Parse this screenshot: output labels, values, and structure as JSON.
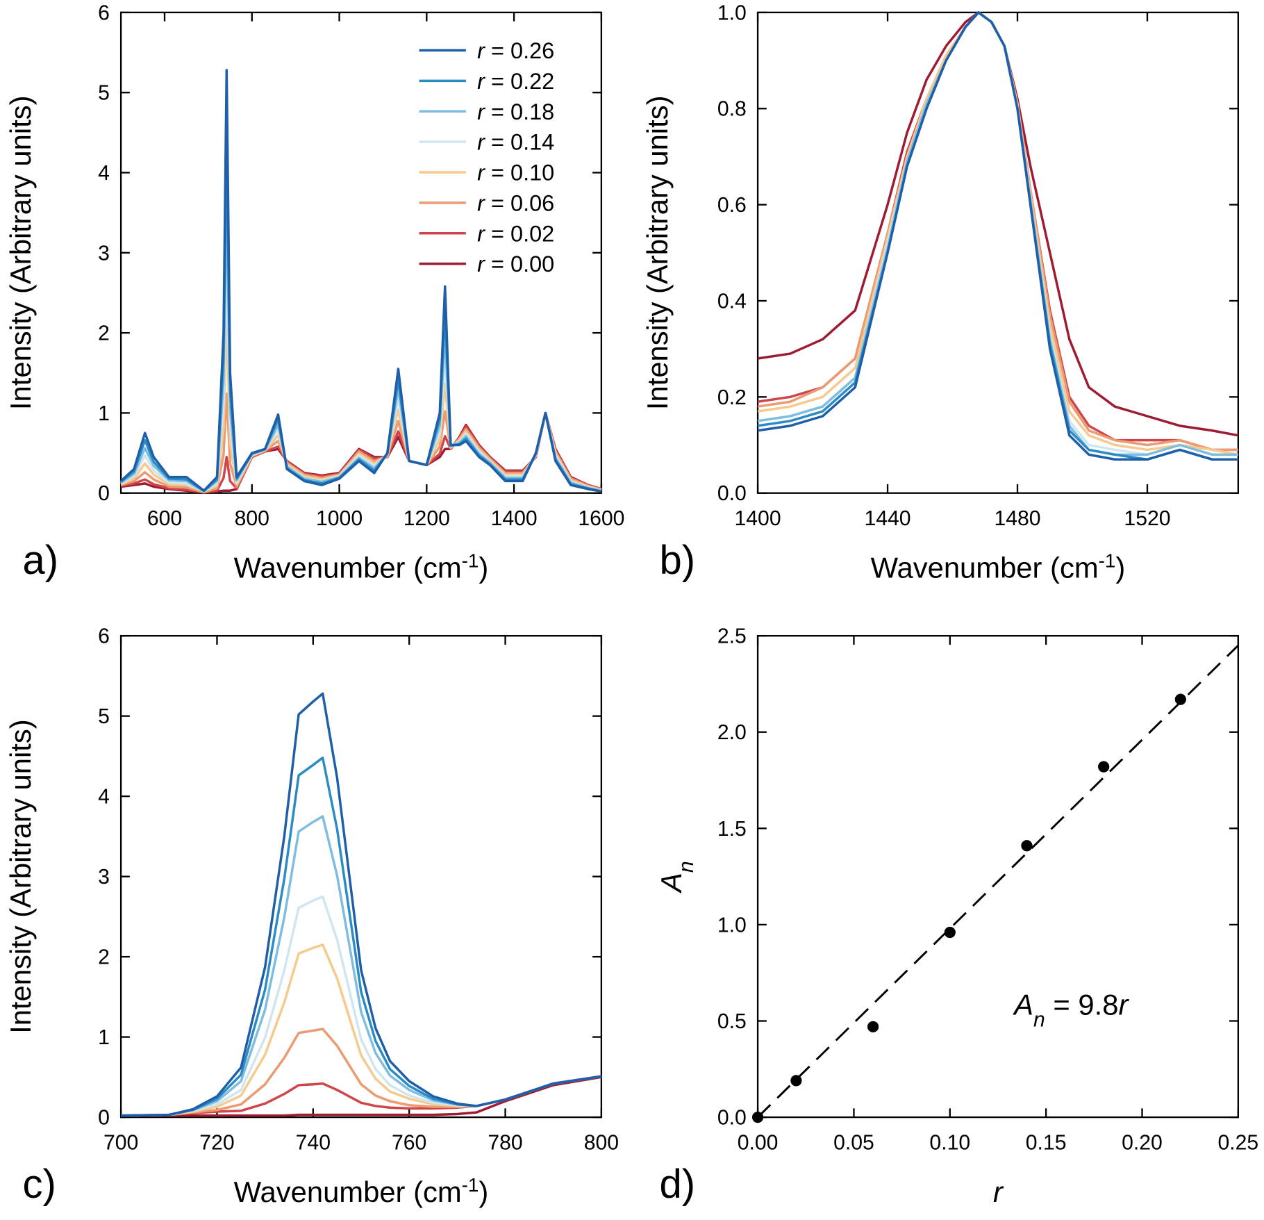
{
  "chart_data": [
    {
      "type": "line",
      "panel_label": "a)",
      "xlabel": [
        "Wavenumber (cm",
        "-1",
        ")"
      ],
      "ylabel": "Intensity (Arbitrary units)",
      "xlim": [
        500,
        1600
      ],
      "ylim": [
        0,
        6
      ],
      "xticks": [
        600,
        800,
        1000,
        1200,
        1400,
        1600
      ],
      "yticks": [
        0,
        1,
        2,
        3,
        4,
        5,
        6
      ],
      "legend": "upper right",
      "x": [
        500,
        530,
        555,
        575,
        610,
        650,
        690,
        720,
        735,
        742,
        750,
        765,
        800,
        830,
        860,
        880,
        920,
        960,
        1000,
        1045,
        1080,
        1110,
        1135,
        1160,
        1200,
        1230,
        1242,
        1255,
        1275,
        1290,
        1320,
        1345,
        1380,
        1420,
        1450,
        1472,
        1495,
        1530,
        1570,
        1600
      ],
      "series": [
        {
          "name": "r = 0.26",
          "color": "#1f5ea8",
          "values": [
            0.15,
            0.3,
            0.75,
            0.45,
            0.2,
            0.2,
            0.03,
            0.2,
            2.0,
            5.28,
            1.5,
            0.2,
            0.5,
            0.55,
            0.98,
            0.3,
            0.15,
            0.1,
            0.18,
            0.4,
            0.25,
            0.5,
            1.55,
            0.4,
            0.35,
            1.0,
            2.58,
            0.6,
            0.6,
            0.65,
            0.45,
            0.35,
            0.15,
            0.15,
            0.5,
            1.0,
            0.4,
            0.1,
            0.05,
            0.02
          ]
        },
        {
          "name": "r = 0.22",
          "color": "#2b8cc4",
          "values": [
            0.14,
            0.27,
            0.66,
            0.39,
            0.18,
            0.17,
            0.03,
            0.17,
            1.7,
            4.49,
            1.28,
            0.18,
            0.49,
            0.55,
            0.92,
            0.31,
            0.16,
            0.12,
            0.19,
            0.42,
            0.28,
            0.49,
            1.42,
            0.4,
            0.35,
            0.92,
            2.28,
            0.59,
            0.61,
            0.68,
            0.47,
            0.36,
            0.17,
            0.17,
            0.49,
            1.0,
            0.42,
            0.11,
            0.06,
            0.02
          ]
        },
        {
          "name": "r = 0.18",
          "color": "#7fbde0",
          "values": [
            0.13,
            0.24,
            0.56,
            0.34,
            0.16,
            0.15,
            0.02,
            0.15,
            1.41,
            3.71,
            1.06,
            0.16,
            0.49,
            0.54,
            0.85,
            0.33,
            0.18,
            0.14,
            0.2,
            0.44,
            0.31,
            0.49,
            1.3,
            0.4,
            0.35,
            0.84,
            1.97,
            0.59,
            0.63,
            0.71,
            0.49,
            0.38,
            0.19,
            0.19,
            0.49,
            1.0,
            0.44,
            0.13,
            0.06,
            0.03
          ]
        },
        {
          "name": "r = 0.14",
          "color": "#cfe5ef",
          "values": [
            0.12,
            0.21,
            0.47,
            0.28,
            0.13,
            0.12,
            0.02,
            0.12,
            1.11,
            2.92,
            0.84,
            0.13,
            0.48,
            0.54,
            0.79,
            0.34,
            0.19,
            0.15,
            0.21,
            0.47,
            0.34,
            0.48,
            1.17,
            0.4,
            0.35,
            0.75,
            1.67,
            0.58,
            0.64,
            0.74,
            0.52,
            0.39,
            0.21,
            0.21,
            0.48,
            1.0,
            0.47,
            0.14,
            0.07,
            0.03
          ]
        },
        {
          "name": "r = 0.10",
          "color": "#f6c98d",
          "values": [
            0.11,
            0.18,
            0.37,
            0.23,
            0.11,
            0.1,
            0.02,
            0.09,
            0.82,
            2.13,
            0.62,
            0.11,
            0.47,
            0.53,
            0.72,
            0.36,
            0.21,
            0.17,
            0.22,
            0.49,
            0.37,
            0.47,
            1.04,
            0.4,
            0.35,
            0.67,
            1.36,
            0.57,
            0.66,
            0.77,
            0.54,
            0.41,
            0.23,
            0.23,
            0.47,
            1.0,
            0.49,
            0.16,
            0.08,
            0.04
          ]
        },
        {
          "name": "r = 0.06",
          "color": "#eb9a72",
          "values": [
            0.1,
            0.15,
            0.26,
            0.17,
            0.08,
            0.07,
            0.01,
            0.06,
            0.48,
            1.24,
            0.37,
            0.08,
            0.46,
            0.53,
            0.65,
            0.38,
            0.23,
            0.19,
            0.23,
            0.52,
            0.4,
            0.46,
            0.9,
            0.4,
            0.35,
            0.58,
            1.02,
            0.56,
            0.68,
            0.8,
            0.57,
            0.43,
            0.25,
            0.25,
            0.46,
            1.0,
            0.52,
            0.18,
            0.09,
            0.04
          ]
        },
        {
          "name": "r = 0.02",
          "color": "#d0454a",
          "values": [
            0.09,
            0.12,
            0.17,
            0.11,
            0.06,
            0.04,
            0.01,
            0.03,
            0.19,
            0.45,
            0.15,
            0.06,
            0.45,
            0.52,
            0.58,
            0.39,
            0.24,
            0.21,
            0.24,
            0.54,
            0.43,
            0.45,
            0.77,
            0.4,
            0.35,
            0.49,
            0.71,
            0.55,
            0.69,
            0.83,
            0.59,
            0.44,
            0.27,
            0.27,
            0.45,
            1.0,
            0.54,
            0.19,
            0.1,
            0.05
          ]
        },
        {
          "name": "r = 0.00",
          "color": "#9e1b32",
          "values": [
            0.08,
            0.1,
            0.12,
            0.08,
            0.05,
            0.03,
            0.01,
            0.02,
            0.03,
            0.03,
            0.03,
            0.05,
            0.45,
            0.52,
            0.55,
            0.4,
            0.25,
            0.22,
            0.25,
            0.55,
            0.45,
            0.45,
            0.7,
            0.4,
            0.35,
            0.45,
            0.55,
            0.55,
            0.7,
            0.85,
            0.6,
            0.45,
            0.28,
            0.28,
            0.45,
            1.0,
            0.55,
            0.2,
            0.1,
            0.05
          ]
        }
      ]
    },
    {
      "type": "line",
      "panel_label": "b)",
      "xlabel": [
        "Wavenumber (cm",
        "-1",
        ")"
      ],
      "ylabel": "Intensity (Arbitrary units)",
      "xlim": [
        1400,
        1548
      ],
      "ylim": [
        0,
        1
      ],
      "xticks": [
        1400,
        1440,
        1480,
        1520
      ],
      "yticks": [
        {
          "value": 0,
          "label": "0.0"
        },
        0.2,
        0.4,
        0.6,
        0.8,
        {
          "value": 1,
          "label": "1.0"
        }
      ],
      "x": [
        1400,
        1410,
        1420,
        1430,
        1440,
        1446,
        1452,
        1458,
        1464,
        1468,
        1472,
        1476,
        1480,
        1484,
        1490,
        1496,
        1502,
        1510,
        1520,
        1530,
        1540,
        1548
      ],
      "series": [
        {
          "color": "#1f5ea8",
          "values": [
            0.13,
            0.14,
            0.16,
            0.22,
            0.5,
            0.68,
            0.8,
            0.9,
            0.97,
            1.0,
            0.98,
            0.93,
            0.8,
            0.6,
            0.3,
            0.12,
            0.08,
            0.07,
            0.07,
            0.09,
            0.07,
            0.07
          ]
        },
        {
          "color": "#2b8cc4",
          "values": [
            0.14,
            0.15,
            0.17,
            0.23,
            0.5,
            0.68,
            0.8,
            0.9,
            0.97,
            1.0,
            0.98,
            0.93,
            0.8,
            0.6,
            0.31,
            0.13,
            0.09,
            0.08,
            0.07,
            0.09,
            0.07,
            0.07
          ]
        },
        {
          "color": "#7fbde0",
          "values": [
            0.15,
            0.16,
            0.18,
            0.24,
            0.51,
            0.69,
            0.81,
            0.9,
            0.97,
            1.0,
            0.98,
            0.93,
            0.8,
            0.61,
            0.32,
            0.14,
            0.09,
            0.08,
            0.08,
            0.1,
            0.08,
            0.08
          ]
        },
        {
          "color": "#cfe5ef",
          "values": [
            0.15,
            0.16,
            0.18,
            0.24,
            0.52,
            0.69,
            0.81,
            0.9,
            0.97,
            1.0,
            0.98,
            0.93,
            0.8,
            0.61,
            0.33,
            0.15,
            0.1,
            0.09,
            0.08,
            0.1,
            0.08,
            0.08
          ]
        },
        {
          "color": "#f6c98d",
          "values": [
            0.17,
            0.18,
            0.2,
            0.26,
            0.53,
            0.7,
            0.82,
            0.91,
            0.97,
            1.0,
            0.98,
            0.93,
            0.81,
            0.62,
            0.35,
            0.17,
            0.12,
            0.1,
            0.09,
            0.1,
            0.09,
            0.08
          ]
        },
        {
          "color": "#eb9a72",
          "values": [
            0.18,
            0.19,
            0.22,
            0.28,
            0.54,
            0.7,
            0.82,
            0.91,
            0.97,
            1.0,
            0.98,
            0.93,
            0.81,
            0.63,
            0.37,
            0.19,
            0.13,
            0.11,
            0.1,
            0.11,
            0.09,
            0.09
          ]
        },
        {
          "color": "#d0454a",
          "values": [
            0.19,
            0.2,
            0.22,
            0.28,
            0.54,
            0.71,
            0.82,
            0.91,
            0.97,
            1.0,
            0.98,
            0.93,
            0.81,
            0.63,
            0.38,
            0.2,
            0.14,
            0.11,
            0.11,
            0.11,
            0.09,
            0.09
          ]
        },
        {
          "color": "#9e1b32",
          "values": [
            0.28,
            0.29,
            0.32,
            0.38,
            0.6,
            0.75,
            0.86,
            0.93,
            0.98,
            1.0,
            0.98,
            0.93,
            0.82,
            0.68,
            0.5,
            0.32,
            0.22,
            0.18,
            0.16,
            0.14,
            0.13,
            0.12
          ]
        }
      ]
    },
    {
      "type": "line",
      "panel_label": "c)",
      "xlabel": [
        "Wavenumber (cm",
        "-1",
        ")"
      ],
      "ylabel": "Intensity (Arbitrary units)",
      "xlim": [
        700,
        800
      ],
      "ylim": [
        0,
        6
      ],
      "xticks": [
        700,
        720,
        740,
        760,
        780,
        800
      ],
      "yticks": [
        0,
        1,
        2,
        3,
        4,
        5,
        6
      ],
      "x": [
        700,
        710,
        715,
        720,
        725,
        730,
        734,
        737,
        740,
        742,
        745,
        750,
        753,
        756,
        760,
        765,
        770,
        774,
        780,
        790,
        800
      ],
      "series": [
        {
          "color": "#1f5ea8",
          "values": [
            0.02,
            0.03,
            0.1,
            0.26,
            0.62,
            1.87,
            3.5,
            5.02,
            5.18,
            5.28,
            4.23,
            1.83,
            1.11,
            0.7,
            0.45,
            0.26,
            0.17,
            0.14,
            0.22,
            0.42,
            0.51
          ]
        },
        {
          "color": "#2b8cc4",
          "values": [
            0.02,
            0.03,
            0.09,
            0.23,
            0.53,
            1.59,
            2.97,
            4.26,
            4.39,
            4.48,
            3.59,
            1.56,
            0.95,
            0.6,
            0.39,
            0.23,
            0.16,
            0.14,
            0.22,
            0.42,
            0.51
          ]
        },
        {
          "color": "#7fbde0",
          "values": [
            0.02,
            0.03,
            0.09,
            0.2,
            0.45,
            1.34,
            2.49,
            3.56,
            3.68,
            3.75,
            3.01,
            1.31,
            0.8,
            0.52,
            0.34,
            0.21,
            0.16,
            0.14,
            0.22,
            0.42,
            0.51
          ]
        },
        {
          "color": "#cfe5ef",
          "values": [
            0.02,
            0.03,
            0.08,
            0.16,
            0.34,
            0.99,
            1.83,
            2.61,
            2.7,
            2.75,
            2.21,
            0.97,
            0.6,
            0.4,
            0.27,
            0.18,
            0.15,
            0.14,
            0.22,
            0.42,
            0.51
          ]
        },
        {
          "color": "#f6c98d",
          "values": [
            0.02,
            0.03,
            0.07,
            0.13,
            0.27,
            0.78,
            1.43,
            2.04,
            2.11,
            2.15,
            1.73,
            0.77,
            0.48,
            0.32,
            0.23,
            0.16,
            0.14,
            0.14,
            0.22,
            0.42,
            0.51
          ]
        },
        {
          "color": "#eb9a72",
          "values": [
            0.02,
            0.03,
            0.06,
            0.09,
            0.16,
            0.41,
            0.74,
            1.05,
            1.08,
            1.1,
            0.89,
            0.41,
            0.27,
            0.2,
            0.15,
            0.13,
            0.13,
            0.14,
            0.22,
            0.42,
            0.51
          ]
        },
        {
          "color": "#d0454a",
          "values": [
            0.02,
            0.03,
            0.05,
            0.07,
            0.08,
            0.17,
            0.29,
            0.4,
            0.41,
            0.42,
            0.34,
            0.18,
            0.14,
            0.12,
            0.11,
            0.11,
            0.12,
            0.14,
            0.22,
            0.42,
            0.51
          ]
        },
        {
          "color": "#9e1b32",
          "values": [
            0.02,
            0.02,
            0.02,
            0.02,
            0.02,
            0.02,
            0.02,
            0.03,
            0.03,
            0.03,
            0.03,
            0.03,
            0.03,
            0.03,
            0.03,
            0.03,
            0.04,
            0.06,
            0.2,
            0.4,
            0.5
          ]
        }
      ]
    },
    {
      "type": "scatter",
      "panel_label": "d)",
      "xlabel": [
        "r"
      ],
      "ylabel": [
        "A",
        "n"
      ],
      "xlim": [
        0,
        0.25
      ],
      "ylim": [
        0,
        2.5
      ],
      "xticks": [
        {
          "value": 0,
          "label": "0.00"
        },
        0.05,
        {
          "value": 0.1,
          "label": "0.10"
        },
        0.15,
        {
          "value": 0.2,
          "label": "0.20"
        },
        0.25
      ],
      "yticks": [
        {
          "value": 0,
          "label": "0.0"
        },
        0.5,
        {
          "value": 1,
          "label": "1.0"
        },
        1.5,
        {
          "value": 2,
          "label": "2.0"
        },
        2.5
      ],
      "x": [
        0,
        0.02,
        0.06,
        0.1,
        0.14,
        0.18,
        0.22
      ],
      "values": [
        0,
        0.19,
        0.47,
        0.96,
        1.41,
        1.82,
        2.17
      ],
      "color": "#000000",
      "fit_slope": 9.8,
      "annotation": [
        "A",
        "n",
        " = 9.8",
        "r"
      ]
    }
  ]
}
